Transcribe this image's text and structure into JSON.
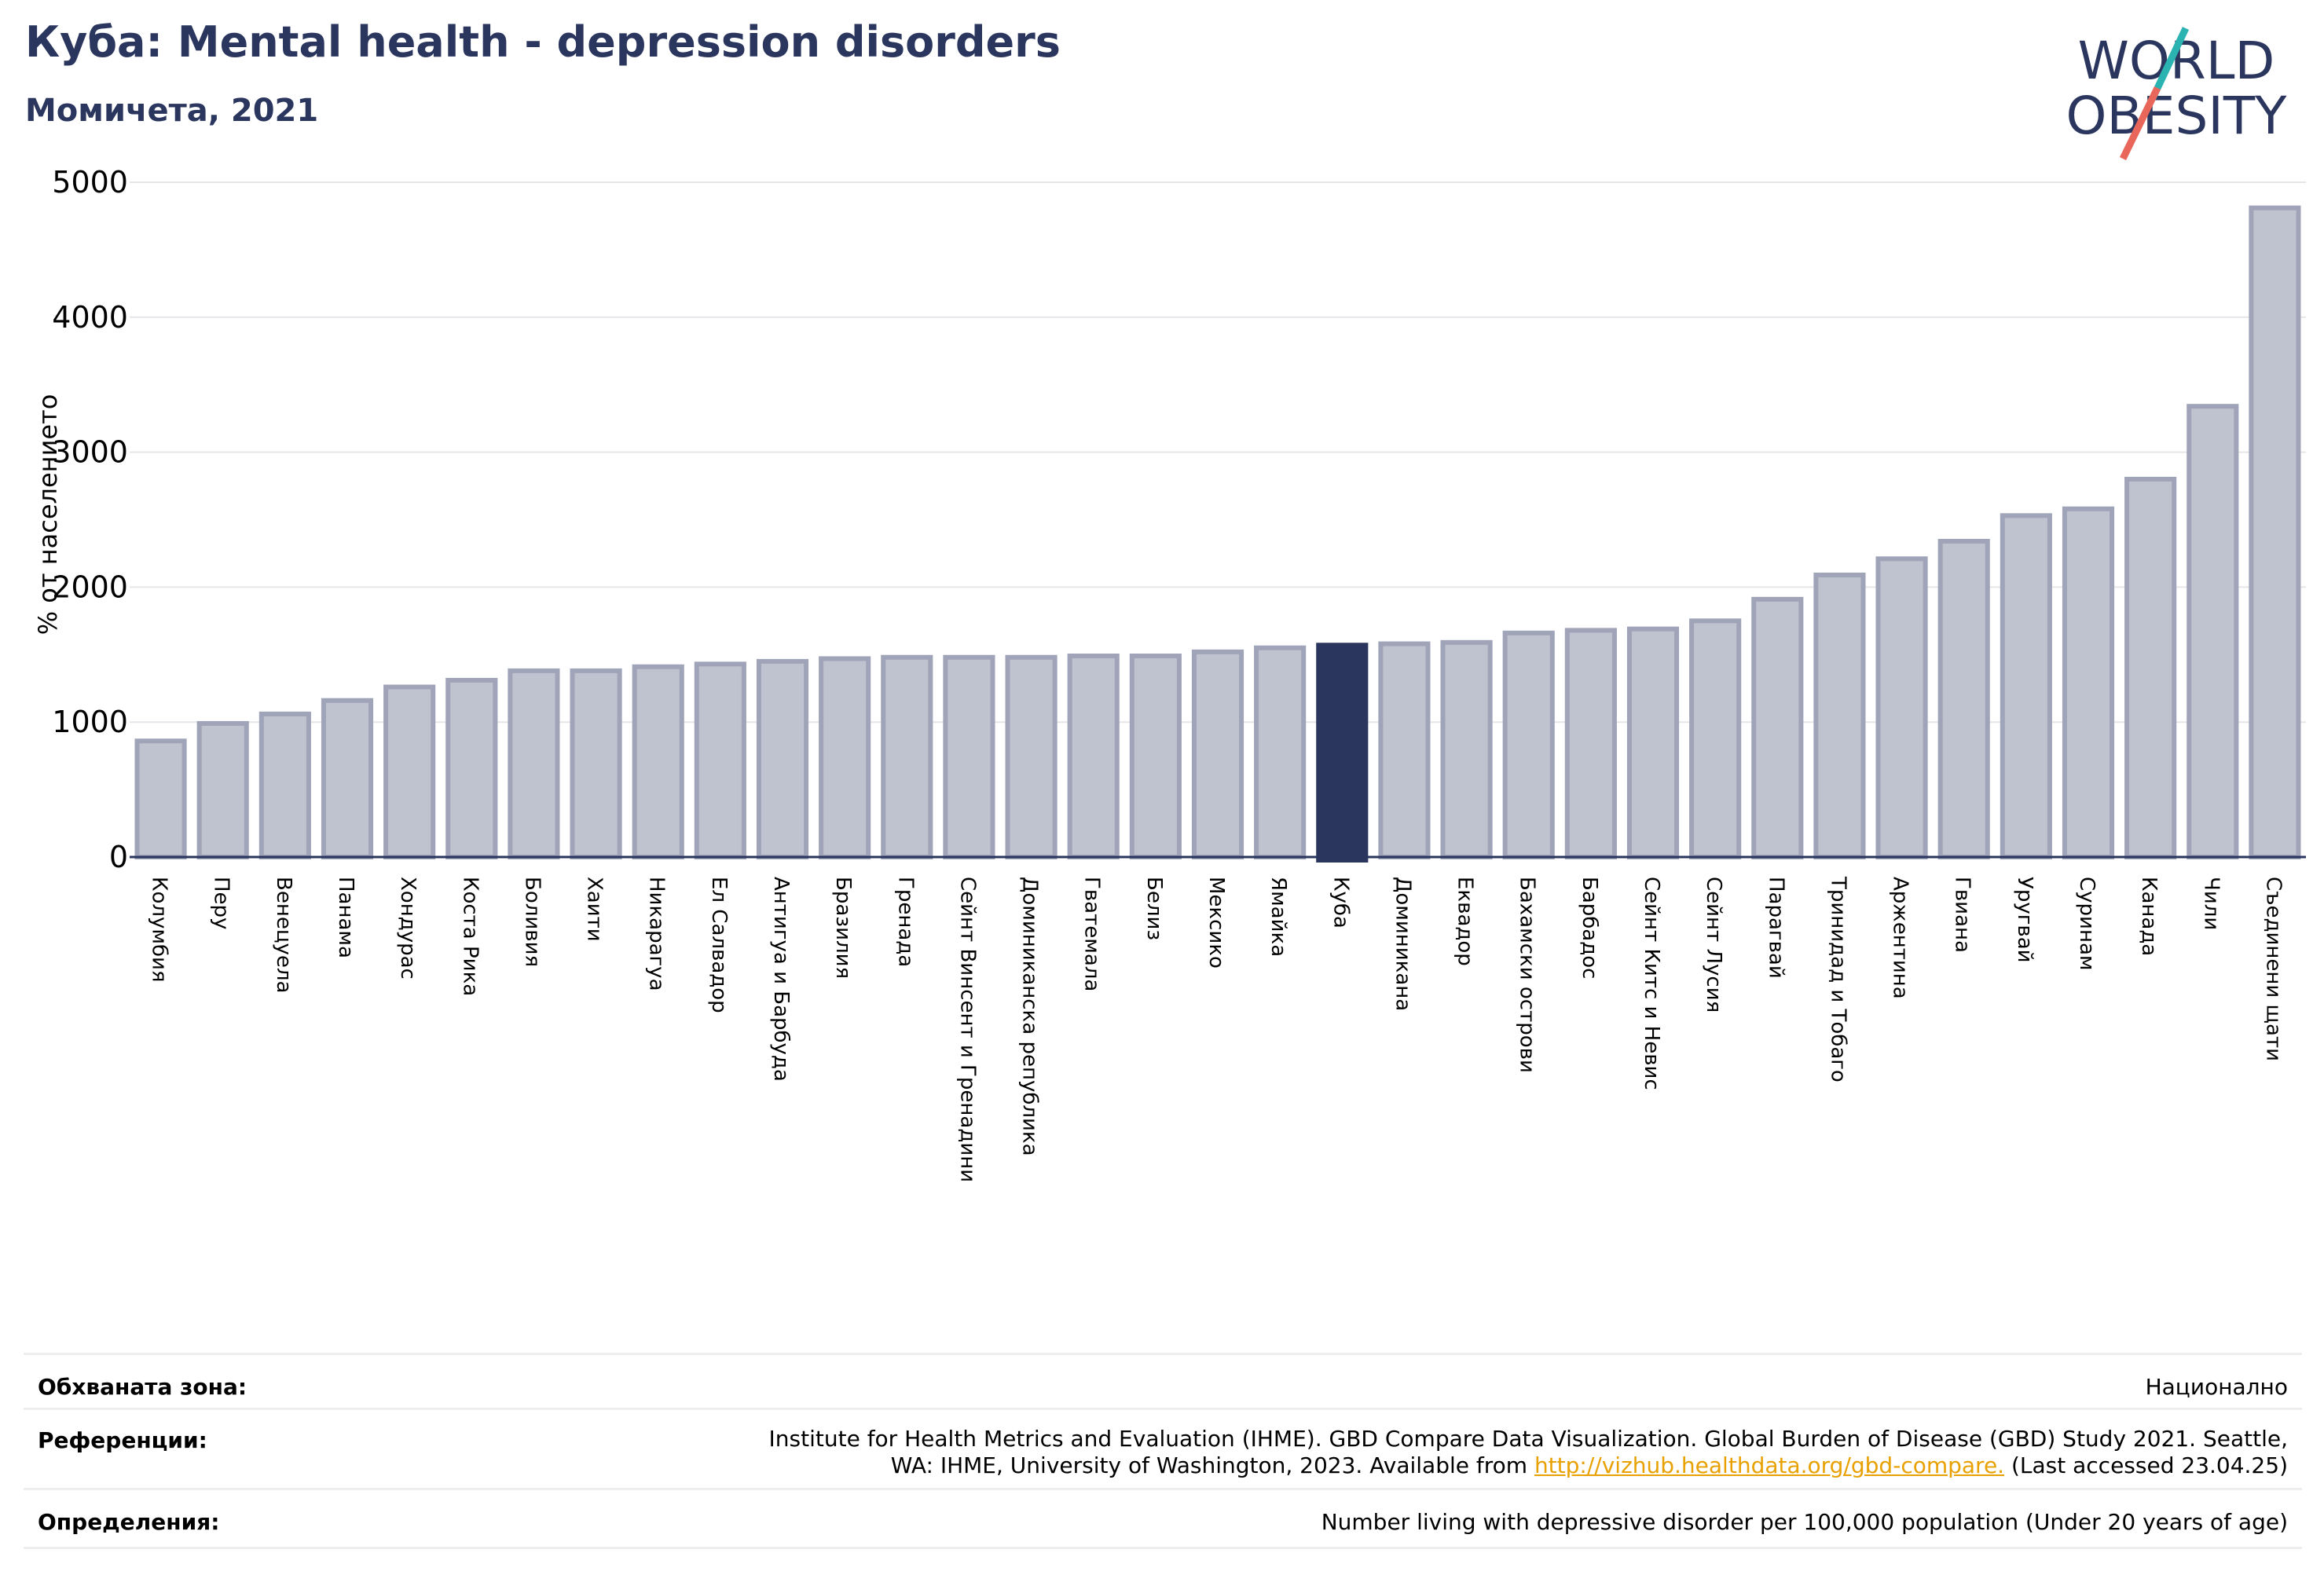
{
  "header": {
    "title": "Куба: Mental health - depression disorders",
    "subtitle": "Момичета, 2021"
  },
  "logo": {
    "line1": "WORLD",
    "line2": "OBESITY",
    "accent_teal": "#2bb3b1",
    "accent_red": "#e8675a",
    "text_color": "#2b365f"
  },
  "colors": {
    "bar_fill": "#bfc2cf",
    "bar_stroke": "#9fa4b8",
    "highlight": "#2b365f",
    "title": "#2b365f"
  },
  "chart_data": {
    "type": "bar",
    "title": "Куба: Mental health - depression disorders",
    "subtitle": "Момичета, 2021",
    "xlabel": "",
    "ylabel": "% от населението",
    "ylim": [
      0,
      5000
    ],
    "yticks": [
      0,
      1000,
      2000,
      3000,
      4000,
      5000
    ],
    "grid": true,
    "highlight_category": "Куба",
    "categories": [
      "Колумбия",
      "Перу",
      "Венецуела",
      "Панама",
      "Хондурас",
      "Коста Рика",
      "Боливия",
      "Хаити",
      "Никарагуа",
      "Ел Салвадор",
      "Антигуа и Барбуда",
      "Бразилия",
      "Гренада",
      "Сейнт Винсент и Гренадини",
      "Доминиканска република",
      "Гватемала",
      "Белиз",
      "Мексико",
      "Ямайка",
      "Куба",
      "Доминикана",
      "Еквадор",
      "Бахамски острови",
      "Барбадос",
      "Сейнт Китс и Невис",
      "Сейнт Лусия",
      "Парагвай",
      "Тринидад и Тобаго",
      "Аржентина",
      "Гвиана",
      "Уругвай",
      "Суринам",
      "Канада",
      "Чили",
      "Съединени щати"
    ],
    "values": [
      860,
      990,
      1060,
      1160,
      1260,
      1310,
      1380,
      1380,
      1410,
      1430,
      1450,
      1470,
      1480,
      1480,
      1480,
      1490,
      1490,
      1520,
      1550,
      1570,
      1580,
      1590,
      1660,
      1680,
      1690,
      1750,
      1910,
      2090,
      2210,
      2340,
      2530,
      2580,
      2800,
      3340,
      4810
    ]
  },
  "footer": {
    "coverage": {
      "label": "Обхваната зона:",
      "value": "Национално"
    },
    "references": {
      "label": "Референции:",
      "line1": "Institute for Health Metrics and Evaluation (IHME). GBD Compare Data Visualization. Global Burden of Disease (GBD) Study 2021. Seattle,",
      "line2_pre": "WA: IHME, University of Washington, 2023. Available from ",
      "link": "http://vizhub.healthdata.org/gbd-compare.",
      "line2_post": " (Last accessed 23.04.25)"
    },
    "definitions": {
      "label": "Определения:",
      "value": "Number living with depressive disorder per 100,000 population (Under 20 years of age)"
    }
  }
}
